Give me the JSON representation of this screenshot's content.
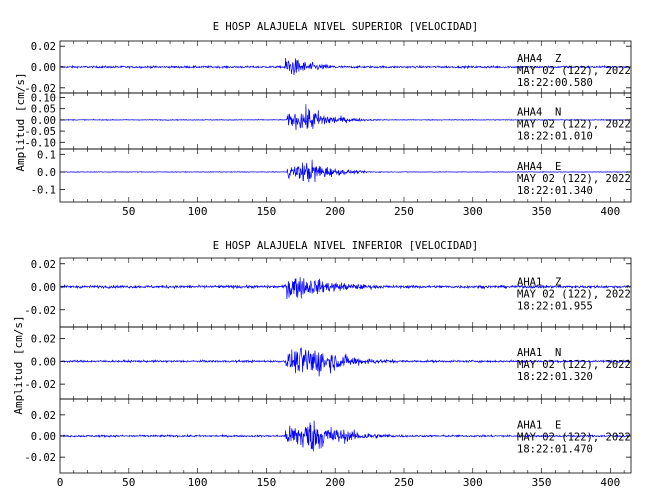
{
  "chart_data": [
    {
      "type": "line",
      "title": "E HOSP ALAJUELA NIVEL SUPERIOR [VELOCIDAD]",
      "ylabel": "Amplitud [cm/s]",
      "xlim": [
        0,
        415
      ],
      "x_ticks": [
        "50",
        "100",
        "150",
        "200",
        "250",
        "300",
        "350",
        "400"
      ],
      "grid": false,
      "series": [
        {
          "name": "Z",
          "station": "AHA4",
          "channel": "Z",
          "date": "MAY 02 (122), 2022",
          "time": "18:22:00.580",
          "ylim": [
            -0.025,
            0.025
          ],
          "y_ticks": [
            "0.02",
            "0.00",
            "-0.02"
          ],
          "noise_amp": 0.0016,
          "onset": 163,
          "peak_time": 165,
          "peak_amp": 0.02,
          "decay": 18
        },
        {
          "name": "N",
          "station": "AHA4",
          "channel": "N",
          "date": "MAY 02 (122), 2022",
          "time": "18:22:01.010",
          "ylim": [
            -0.13,
            0.12
          ],
          "y_ticks": [
            "0.10",
            "0.05",
            "0.00",
            "-0.05",
            "-0.10"
          ],
          "noise_amp": 0.003,
          "onset": 165,
          "peak_time": 182,
          "peak_amp": 0.1,
          "decay": 16
        },
        {
          "name": "E",
          "station": "AHA4",
          "channel": "E",
          "date": "MAY 02 (122), 2022",
          "time": "18:22:01.340",
          "ylim": [
            -0.17,
            0.13
          ],
          "y_ticks": [
            "0.1",
            "0.0",
            "-0.1"
          ],
          "noise_amp": 0.003,
          "onset": 165,
          "peak_time": 183,
          "peak_amp": 0.12,
          "decay": 15
        }
      ]
    },
    {
      "type": "line",
      "title": "E HOSP ALAJUELA NIVEL INFERIOR [VELOCIDAD]",
      "ylabel": "Amplitud [cm/s]",
      "xlim": [
        0,
        415
      ],
      "x_ticks": [
        "0",
        "50",
        "100",
        "150",
        "200",
        "250",
        "300",
        "350",
        "400"
      ],
      "grid": false,
      "series": [
        {
          "name": "Z",
          "station": "AHA1",
          "channel": "Z",
          "date": "MAY 02 (122), 2022",
          "time": "18:22:01.955",
          "ylim": [
            -0.035,
            0.025
          ],
          "y_ticks": [
            "0.02",
            "0.00",
            "-0.02"
          ],
          "noise_amp": 0.002,
          "onset": 163,
          "peak_time": 167,
          "peak_amp": 0.022,
          "decay": 30
        },
        {
          "name": "N",
          "station": "AHA1",
          "channel": "N",
          "date": "MAY 02 (122), 2022",
          "time": "18:22:01.320",
          "ylim": [
            -0.033,
            0.03
          ],
          "y_ticks": [
            "0.02",
            "0.00",
            "-0.02"
          ],
          "noise_amp": 0.0015,
          "onset": 164,
          "peak_time": 183,
          "peak_amp": 0.027,
          "decay": 24
        },
        {
          "name": "E",
          "station": "AHA1",
          "channel": "E",
          "date": "MAY 02 (122), 2022",
          "time": "18:22:01.470",
          "ylim": [
            -0.035,
            0.035
          ],
          "y_ticks": [
            "0.02",
            "0.00",
            "-0.02"
          ],
          "noise_amp": 0.0015,
          "onset": 164,
          "peak_time": 182,
          "peak_amp": 0.03,
          "decay": 24
        }
      ]
    }
  ],
  "colors": {
    "trace": "#0000ff",
    "axes": "#000000",
    "text": "#000000"
  }
}
